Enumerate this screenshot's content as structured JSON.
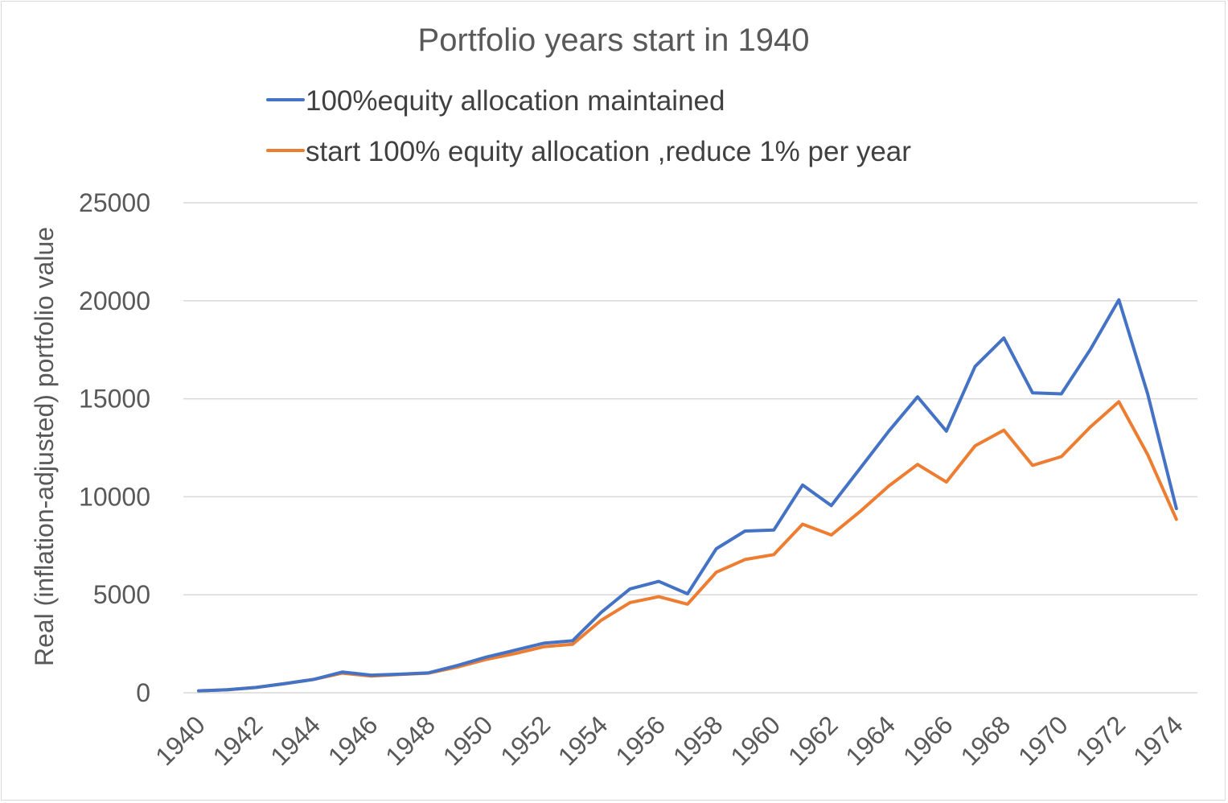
{
  "chart_data": {
    "type": "line",
    "title": "Portfolio years start in 1940",
    "xlabel": "",
    "ylabel": "Real (inflation-adjusted) portfolio value",
    "ylim": [
      0,
      25000
    ],
    "y_ticks": [
      0,
      5000,
      10000,
      15000,
      20000,
      25000
    ],
    "x": [
      1940,
      1941,
      1942,
      1943,
      1944,
      1945,
      1946,
      1947,
      1948,
      1949,
      1950,
      1951,
      1952,
      1953,
      1954,
      1955,
      1956,
      1957,
      1958,
      1959,
      1960,
      1961,
      1962,
      1963,
      1964,
      1965,
      1966,
      1967,
      1968,
      1969,
      1970,
      1971,
      1972,
      1973,
      1974
    ],
    "x_tick_labels": [
      "1940",
      "1942",
      "1944",
      "1946",
      "1948",
      "1950",
      "1952",
      "1954",
      "1956",
      "1958",
      "1960",
      "1962",
      "1964",
      "1966",
      "1968",
      "1970",
      "1972",
      "1974"
    ],
    "grid": "horizontal",
    "legend_position": "top",
    "series": [
      {
        "name": "100%equity allocation maintained",
        "color": "#4472C4",
        "values": [
          100,
          150,
          270,
          470,
          680,
          1060,
          900,
          950,
          1020,
          1390,
          1820,
          2170,
          2530,
          2650,
          4100,
          5300,
          5680,
          5050,
          7350,
          8250,
          8300,
          10600,
          9550,
          11450,
          13350,
          15100,
          13350,
          16650,
          18100,
          15300,
          15250,
          17500,
          20050,
          15250,
          9400
        ]
      },
      {
        "name": "start 100% equity allocation ,reduce 1% per year",
        "color": "#ED7D31",
        "values": [
          100,
          150,
          270,
          470,
          680,
          1000,
          850,
          930,
          1000,
          1310,
          1700,
          2000,
          2350,
          2470,
          3700,
          4600,
          4900,
          4520,
          6150,
          6800,
          7050,
          8600,
          8050,
          9250,
          10550,
          11650,
          10750,
          12600,
          13400,
          11600,
          12050,
          13550,
          14850,
          12150,
          8850
        ]
      }
    ]
  }
}
